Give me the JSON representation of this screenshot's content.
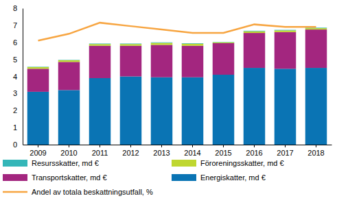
{
  "chart_data": {
    "type": "bar",
    "stacked": true,
    "grid": false,
    "categories": [
      "2009",
      "2010",
      "2011",
      "2012",
      "2013",
      "2014",
      "2015",
      "2016",
      "2017",
      "2018"
    ],
    "ylim": [
      0,
      8
    ],
    "yticks": [
      0,
      1,
      2,
      3,
      4,
      5,
      6,
      7,
      8
    ],
    "series": [
      {
        "name": "Energiskatter, md €",
        "color": "#0a74b4",
        "values": [
          3.1,
          3.2,
          3.9,
          4.0,
          3.95,
          3.95,
          4.1,
          4.5,
          4.45,
          4.5
        ]
      },
      {
        "name": "Transportskatter, md €",
        "color": "#a3267f",
        "values": [
          1.35,
          1.65,
          1.9,
          1.8,
          1.9,
          1.85,
          1.85,
          2.05,
          2.15,
          2.25
        ]
      },
      {
        "name": "Föroreningsskatter, md €",
        "color": "#bfd730",
        "values": [
          0.1,
          0.1,
          0.1,
          0.1,
          0.12,
          0.12,
          0.05,
          0.1,
          0.1,
          0.08
        ]
      },
      {
        "name": "Resursskatter, md €",
        "color": "#34b6b8",
        "values": [
          0.02,
          0.02,
          0.03,
          0.03,
          0.03,
          0.03,
          0.02,
          0.03,
          0.03,
          0.03
        ]
      },
      {
        "name": "Andel av totala beskattningsutfall, %",
        "color": "#f7a541",
        "type": "line",
        "values": [
          6.1,
          6.5,
          7.15,
          6.95,
          6.75,
          6.55,
          6.55,
          7.05,
          6.9,
          6.9
        ]
      }
    ]
  }
}
